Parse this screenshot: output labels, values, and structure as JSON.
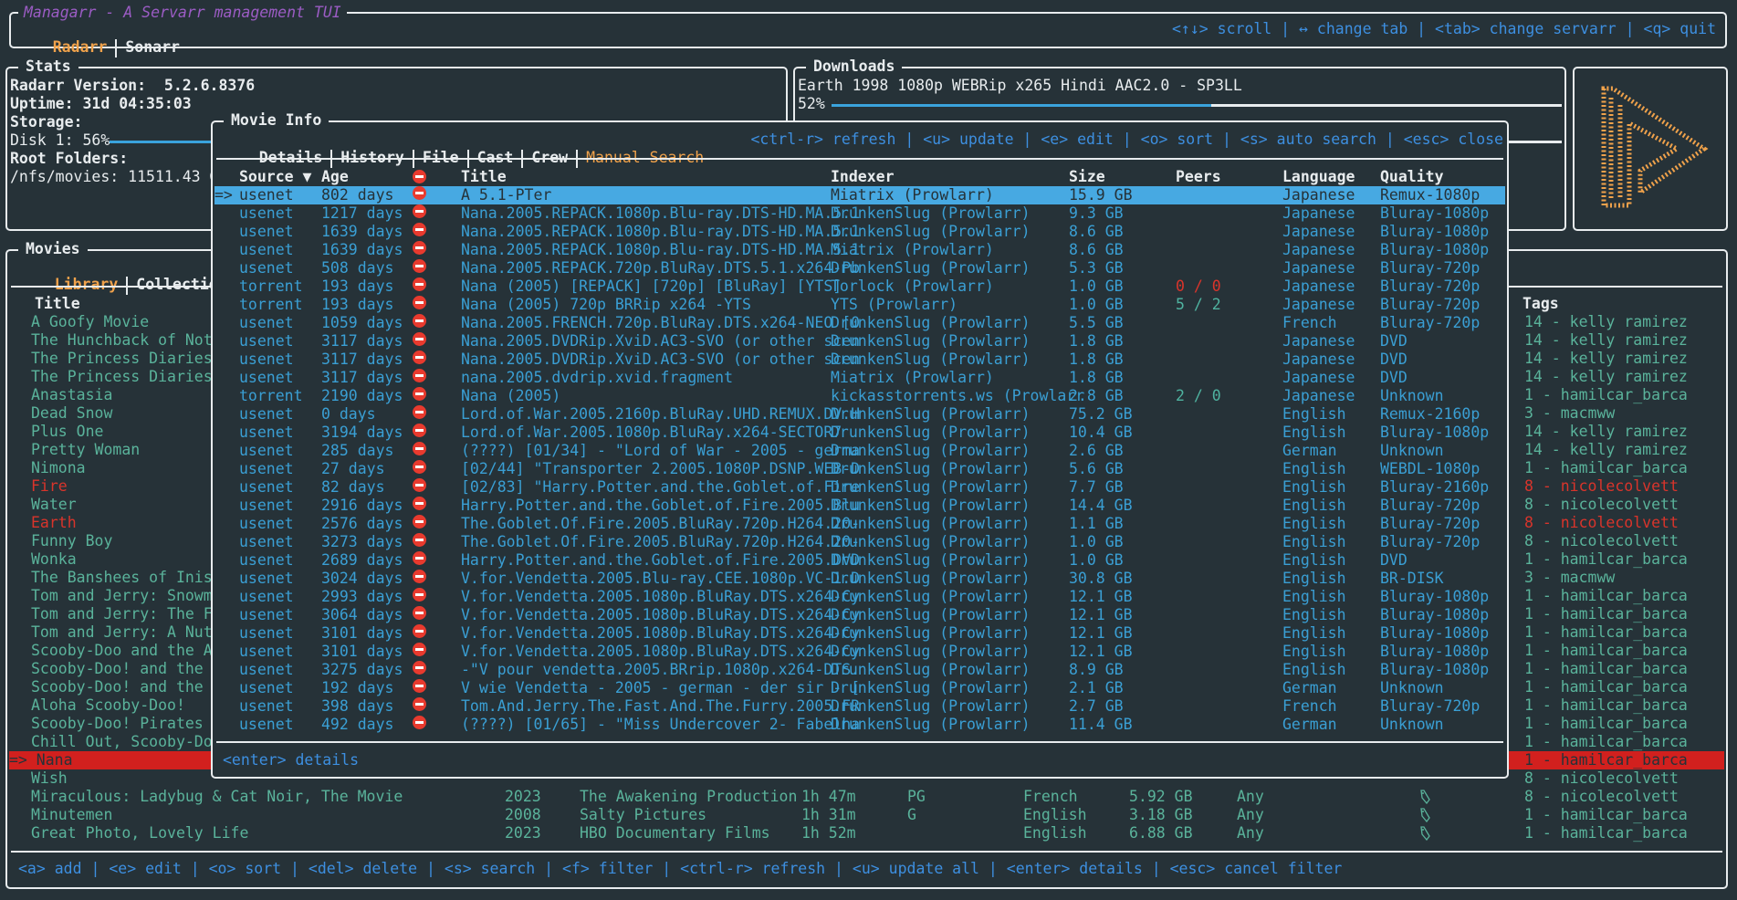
{
  "app": {
    "title": "Managarr - A Servarr management TUI",
    "tabs": [
      "Radarr",
      "Sonarr"
    ],
    "active_tab": "Radarr",
    "help": "<↑↓> scroll | ↔ change tab | <tab> change servarr | <q> quit"
  },
  "stats": {
    "title": "Stats",
    "version_label": "Radarr Version:",
    "version": "5.2.6.8376",
    "uptime_label": "Uptime:",
    "uptime": "31d 04:35:03",
    "storage_label": "Storage:",
    "disk_label": "Disk 1: 56%",
    "disk_percent": 56,
    "root_label": "Root Folders:",
    "root_folder": "/nfs/movies: 11511.43 GB"
  },
  "downloads": {
    "title": "Downloads",
    "items": [
      {
        "name": "Earth 1998 1080p WEBRip x265 Hindi AAC2.0 - SP3LL",
        "percent_label": "52%",
        "percent": 52
      }
    ]
  },
  "logo": {
    "icon": "radarr-logo-icon",
    "color": "#f0a24b"
  },
  "movies": {
    "title": "Movies",
    "tabs": [
      "Library",
      "Collections"
    ],
    "active_tab": "Library",
    "headers": {
      "title": "Title",
      "tags": "Tags"
    },
    "rows": [
      {
        "title": "A Goofy Movie",
        "tags": "14 - kelly ramirez"
      },
      {
        "title": "The Hunchback of Notr",
        "tags": "14 - kelly ramirez"
      },
      {
        "title": "The Princess Diaries",
        "tags": "14 - kelly ramirez"
      },
      {
        "title": "The Princess Diaries",
        "tags": "14 - kelly ramirez"
      },
      {
        "title": "Anastasia",
        "tags": "1 - hamilcar_barca"
      },
      {
        "title": "Dead Snow",
        "tags": "3 - macmww"
      },
      {
        "title": "Plus One",
        "tags": "14 - kelly ramirez"
      },
      {
        "title": "Pretty Woman",
        "tags": "14 - kelly ramirez"
      },
      {
        "title": "Nimona",
        "tags": "1 - hamilcar_barca"
      },
      {
        "title": "Fire",
        "tags": "8 - nicolecolvett",
        "status": "missing"
      },
      {
        "title": "Water",
        "tags": "8 - nicolecolvett"
      },
      {
        "title": "Earth",
        "tags": "8 - nicolecolvett",
        "status": "missing"
      },
      {
        "title": "Funny Boy",
        "tags": "8 - nicolecolvett"
      },
      {
        "title": "Wonka",
        "tags": "1 - hamilcar_barca"
      },
      {
        "title": "The Banshees of Inish",
        "tags": "3 - macmww"
      },
      {
        "title": "Tom and Jerry: Snowma",
        "tags": "1 - hamilcar_barca"
      },
      {
        "title": "Tom and Jerry: The Fa",
        "tags": "1 - hamilcar_barca"
      },
      {
        "title": "Tom and Jerry: A Nutc",
        "tags": "1 - hamilcar_barca"
      },
      {
        "title": "Scooby-Doo and the Al",
        "tags": "1 - hamilcar_barca"
      },
      {
        "title": "Scooby-Doo! and the L",
        "tags": "1 - hamilcar_barca"
      },
      {
        "title": "Scooby-Doo! and the M",
        "tags": "1 - hamilcar_barca"
      },
      {
        "title": "Aloha Scooby-Doo!",
        "tags": "1 - hamilcar_barca"
      },
      {
        "title": "Scooby-Doo! Pirates A",
        "tags": "1 - hamilcar_barca"
      },
      {
        "title": "Chill Out, Scooby-Doo",
        "tags": "1 - hamilcar_barca"
      },
      {
        "title": "=> Nana",
        "tags": "1 - hamilcar_barca",
        "selected": true
      },
      {
        "title": "Wish",
        "tags": "8 - nicolecolvett"
      },
      {
        "title": "Miraculous: Ladybug & Cat Noir, The Movie",
        "year": "2023",
        "studio": "The Awakening Production",
        "runtime": "1h 47m",
        "rating": "PG",
        "language": "French",
        "size": "5.92 GB",
        "profile": "Any",
        "monitored": true,
        "tags": "8 - nicolecolvett"
      },
      {
        "title": "Minutemen",
        "year": "2008",
        "studio": "Salty Pictures",
        "runtime": "1h 31m",
        "rating": "G",
        "language": "English",
        "size": "3.18 GB",
        "profile": "Any",
        "monitored": true,
        "tags": "1 - hamilcar_barca"
      },
      {
        "title": "Great Photo, Lovely Life",
        "year": "2023",
        "studio": "HBO Documentary Films",
        "runtime": "1h 52m",
        "rating": "",
        "language": "English",
        "size": "6.88 GB",
        "profile": "Any",
        "monitored": true,
        "tags": "1 - hamilcar_barca"
      }
    ],
    "footer": "<a> add | <e> edit | <o> sort | <del> delete | <s> search | <f> filter | <ctrl-r> refresh | <u> update all | <enter> details | <esc> cancel filter"
  },
  "movie_info": {
    "title": "Movie Info",
    "tabs": [
      "Details",
      "History",
      "File",
      "Cast",
      "Crew",
      "Manual Search"
    ],
    "active_tab": "Manual Search",
    "help": "<ctrl-r> refresh | <u> update | <e> edit | <o> sort | <s> auto search | <esc> close",
    "headers": {
      "source": "Source ▼",
      "age": "Age",
      "title": "Title",
      "indexer": "Indexer",
      "size": "Size",
      "peers": "Peers",
      "language": "Language",
      "quality": "Quality"
    },
    "selected_marker": "=>",
    "rows": [
      {
        "source": "usenet",
        "age": "802 days",
        "title": "A 5.1-PTer",
        "indexer": "Miatrix (Prowlarr)",
        "size": "15.9 GB",
        "peers": "",
        "language": "Japanese",
        "quality": "Remux-1080p",
        "selected": true
      },
      {
        "source": "usenet",
        "age": "1217 days",
        "title": "Nana.2005.REPACK.1080p.Blu-ray.DTS-HD.MA.5.1",
        "indexer": "DrunkenSlug (Prowlarr)",
        "size": "9.3 GB",
        "peers": "",
        "language": "Japanese",
        "quality": "Bluray-1080p"
      },
      {
        "source": "usenet",
        "age": "1639 days",
        "title": "Nana.2005.REPACK.1080p.Blu-ray.DTS-HD.MA.5.1",
        "indexer": "DrunkenSlug (Prowlarr)",
        "size": "8.6 GB",
        "peers": "",
        "language": "Japanese",
        "quality": "Bluray-1080p"
      },
      {
        "source": "usenet",
        "age": "1639 days",
        "title": "Nana.2005.REPACK.1080p.Blu-ray.DTS-HD.MA.5.1",
        "indexer": "Miatrix (Prowlarr)",
        "size": "8.6 GB",
        "peers": "",
        "language": "Japanese",
        "quality": "Bluray-1080p"
      },
      {
        "source": "usenet",
        "age": "508 days",
        "title": "Nana.2005.REPACK.720p.BluRay.DTS.5.1.x264-Pb",
        "indexer": "DrunkenSlug (Prowlarr)",
        "size": "5.3 GB",
        "peers": "",
        "language": "Japanese",
        "quality": "Bluray-720p"
      },
      {
        "source": "torrent",
        "age": "193 days",
        "title": "Nana (2005) [REPACK] [720p] [BluRay] [YTS]",
        "indexer": "Torlock (Prowlarr)",
        "size": "1.0 GB",
        "peers": "0 / 0",
        "peer_status": "bad",
        "language": "Japanese",
        "quality": "Bluray-720p"
      },
      {
        "source": "torrent",
        "age": "193 days",
        "title": "Nana (2005) 720p BRRip x264 -YTS",
        "indexer": "YTS (Prowlarr)",
        "size": "1.0 GB",
        "peers": "5 / 2",
        "peer_status": "good",
        "language": "Japanese",
        "quality": "Bluray-720p"
      },
      {
        "source": "usenet",
        "age": "1059 days",
        "title": "Nana.2005.FRENCH.720p.BluRay.DTS.x264-NEO [0",
        "indexer": "DrunkenSlug (Prowlarr)",
        "size": "5.5 GB",
        "peers": "",
        "language": "French",
        "quality": "Bluray-720p"
      },
      {
        "source": "usenet",
        "age": "3117 days",
        "title": "Nana.2005.DVDRip.XviD.AC3-SVO (or other scen",
        "indexer": "DrunkenSlug (Prowlarr)",
        "size": "1.8 GB",
        "peers": "",
        "language": "Japanese",
        "quality": "DVD"
      },
      {
        "source": "usenet",
        "age": "3117 days",
        "title": "Nana.2005.DVDRip.XviD.AC3-SVO (or other scen",
        "indexer": "DrunkenSlug (Prowlarr)",
        "size": "1.8 GB",
        "peers": "",
        "language": "Japanese",
        "quality": "DVD"
      },
      {
        "source": "usenet",
        "age": "3117 days",
        "title": "nana.2005.dvdrip.xvid.fragment",
        "indexer": "Miatrix (Prowlarr)",
        "size": "1.8 GB",
        "peers": "",
        "language": "Japanese",
        "quality": "DVD"
      },
      {
        "source": "torrent",
        "age": "2190 days",
        "title": "Nana (2005)",
        "indexer": "kickasstorrents.ws (Prowlarr",
        "size": "2.8 GB",
        "peers": "2 / 0",
        "peer_status": "good",
        "language": "Japanese",
        "quality": "Unknown"
      },
      {
        "source": "usenet",
        "age": "0 days",
        "title": "Lord.of.War.2005.2160p.BluRay.UHD.REMUX.DV.H",
        "indexer": "DrunkenSlug (Prowlarr)",
        "size": "75.2 GB",
        "peers": "",
        "language": "English",
        "quality": "Remux-2160p"
      },
      {
        "source": "usenet",
        "age": "3194 days",
        "title": "Lord.of.War.2005.1080p.BluRay.x264-SECTOR7",
        "indexer": "DrunkenSlug (Prowlarr)",
        "size": "10.4 GB",
        "peers": "",
        "language": "English",
        "quality": "Bluray-1080p"
      },
      {
        "source": "usenet",
        "age": "285 days",
        "title": "(????) [01/34] - \"Lord of War - 2005 - germa",
        "indexer": "DrunkenSlug (Prowlarr)",
        "size": "2.6 GB",
        "peers": "",
        "language": "German",
        "quality": "Unknown"
      },
      {
        "source": "usenet",
        "age": "27 days",
        "title": "[02/44] \"Transporter 2.2005.1080P.DSNP.WEB-D",
        "indexer": "DrunkenSlug (Prowlarr)",
        "size": "5.6 GB",
        "peers": "",
        "language": "English",
        "quality": "WEBDL-1080p"
      },
      {
        "source": "usenet",
        "age": "82 days",
        "title": "[02/83] \"Harry.Potter.and.the.Goblet.of.Fire",
        "indexer": "DrunkenSlug (Prowlarr)",
        "size": "7.7 GB",
        "peers": "",
        "language": "English",
        "quality": "Bluray-2160p"
      },
      {
        "source": "usenet",
        "age": "2916 days",
        "title": "Harry.Potter.and.the.Goblet.of.Fire.2005.Blu",
        "indexer": "DrunkenSlug (Prowlarr)",
        "size": "14.4 GB",
        "peers": "",
        "language": "English",
        "quality": "Bluray-720p"
      },
      {
        "source": "usenet",
        "age": "2576 days",
        "title": "The.Goblet.Of.Fire.2005.BluRay.720p.H264.20-",
        "indexer": "DrunkenSlug (Prowlarr)",
        "size": "1.1 GB",
        "peers": "",
        "language": "English",
        "quality": "Bluray-720p"
      },
      {
        "source": "usenet",
        "age": "3273 days",
        "title": "The.Goblet.Of.Fire.2005.BluRay.720p.H264.20-",
        "indexer": "DrunkenSlug (Prowlarr)",
        "size": "1.0 GB",
        "peers": "",
        "language": "English",
        "quality": "Bluray-720p"
      },
      {
        "source": "usenet",
        "age": "2689 days",
        "title": "Harry.Potter.and.the.Goblet.of.Fire.2005.DVD",
        "indexer": "DrunkenSlug (Prowlarr)",
        "size": "1.0 GB",
        "peers": "",
        "language": "English",
        "quality": "DVD"
      },
      {
        "source": "usenet",
        "age": "3024 days",
        "title": "V.for.Vendetta.2005.Blu-ray.CEE.1080p.VC-1.D",
        "indexer": "DrunkenSlug (Prowlarr)",
        "size": "30.8 GB",
        "peers": "",
        "language": "English",
        "quality": "BR-DISK"
      },
      {
        "source": "usenet",
        "age": "2993 days",
        "title": "V.for.Vendetta.2005.1080p.BluRay.DTS.x264-Cy",
        "indexer": "DrunkenSlug (Prowlarr)",
        "size": "12.1 GB",
        "peers": "",
        "language": "English",
        "quality": "Bluray-1080p"
      },
      {
        "source": "usenet",
        "age": "3064 days",
        "title": "V.for.Vendetta.2005.1080p.BluRay.DTS.x264-Cy",
        "indexer": "DrunkenSlug (Prowlarr)",
        "size": "12.1 GB",
        "peers": "",
        "language": "English",
        "quality": "Bluray-1080p"
      },
      {
        "source": "usenet",
        "age": "3101 days",
        "title": "V.for.Vendetta.2005.1080p.BluRay.DTS.x264-Cy",
        "indexer": "DrunkenSlug (Prowlarr)",
        "size": "12.1 GB",
        "peers": "",
        "language": "English",
        "quality": "Bluray-1080p"
      },
      {
        "source": "usenet",
        "age": "3101 days",
        "title": "V.for.Vendetta.2005.1080p.BluRay.DTS.x264-Cy",
        "indexer": "DrunkenSlug (Prowlarr)",
        "size": "12.1 GB",
        "peers": "",
        "language": "English",
        "quality": "Bluray-1080p"
      },
      {
        "source": "usenet",
        "age": "3275 days",
        "title": "-\"V pour vendetta.2005.BRrip.1080p.x264-DTS.",
        "indexer": "DrunkenSlug (Prowlarr)",
        "size": "8.9 GB",
        "peers": "",
        "language": "English",
        "quality": "Bluray-1080p"
      },
      {
        "source": "usenet",
        "age": "192 days",
        "title": "V wie Vendetta - 2005 - german - der sir - [",
        "indexer": "DrunkenSlug (Prowlarr)",
        "size": "2.1 GB",
        "peers": "",
        "language": "German",
        "quality": "Unknown"
      },
      {
        "source": "usenet",
        "age": "398 days",
        "title": "Tom.And.Jerry.The.Fast.And.The.Furry.2005.FR",
        "indexer": "DrunkenSlug (Prowlarr)",
        "size": "2.7 GB",
        "peers": "",
        "language": "French",
        "quality": "Bluray-720p"
      },
      {
        "source": "usenet",
        "age": "492 days",
        "title": "(????) [01/65] - \"Miss Undercover 2- Fabelha",
        "indexer": "DrunkenSlug (Prowlarr)",
        "size": "11.4 GB",
        "peers": "",
        "language": "German",
        "quality": "Unknown"
      }
    ],
    "footer": "<enter> details"
  },
  "colors": {
    "background": "#263238",
    "accent": "#f0a24b",
    "keybind": "#3d8fe0",
    "selection": "#47a9e2",
    "missing": "#d2201e",
    "library_text": "#5ab39b",
    "search_text": "#3a9fd4"
  }
}
